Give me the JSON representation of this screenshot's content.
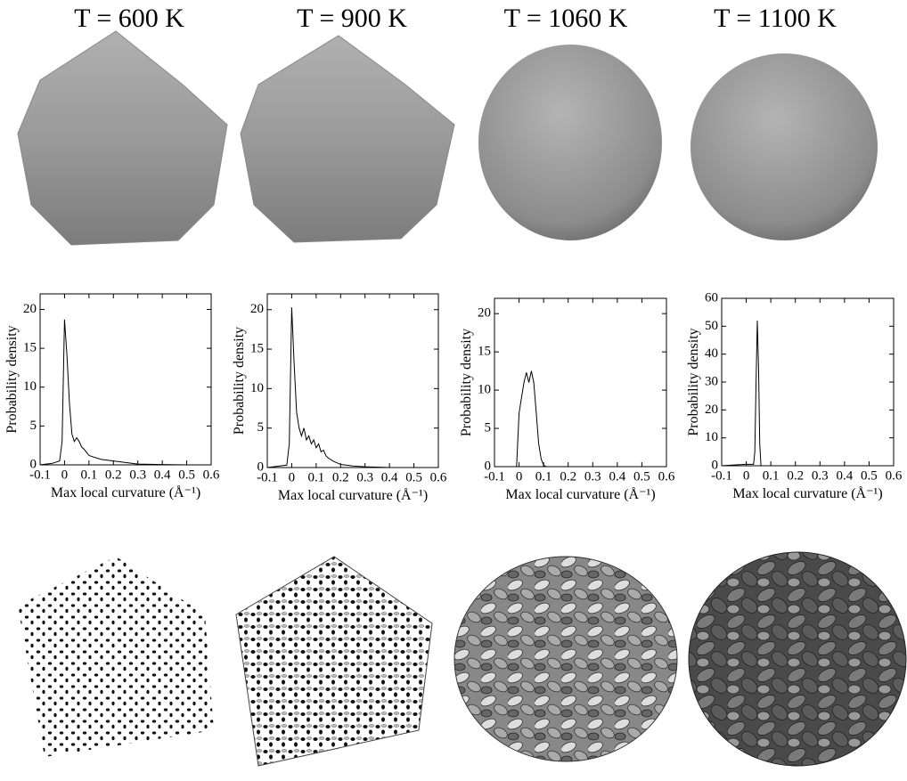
{
  "chart_data": [
    {
      "type": "line",
      "title": "T = 600 K",
      "xlabel": "Max local curvature (Å⁻¹)",
      "ylabel": "Probability density",
      "color": "#000000",
      "x": [
        -0.1,
        -0.05,
        -0.02,
        -0.01,
        0,
        0.01,
        0.02,
        0.03,
        0.04,
        0.05,
        0.06,
        0.07,
        0.08,
        0.1,
        0.12,
        0.15,
        0.2,
        0.25,
        0.3,
        0.4,
        0.5
      ],
      "values": [
        0,
        0.2,
        0.5,
        3,
        18.7,
        14,
        8,
        4,
        3,
        3.5,
        3,
        2.3,
        2,
        1.2,
        1,
        0.7,
        0.5,
        0.3,
        0.1,
        0.05,
        0
      ],
      "xlim": [
        -0.1,
        0.6
      ],
      "xticks": [
        -0.1,
        0,
        0.1,
        0.2,
        0.3,
        0.4,
        0.5,
        0.6
      ],
      "ylim": [
        0,
        22
      ],
      "yticks": [
        0,
        5,
        10,
        15,
        20
      ]
    },
    {
      "type": "line",
      "title": "T = 900 K",
      "xlabel": "Max local curvature (Å⁻¹)",
      "ylabel": "Probability density",
      "color": "#000000",
      "x": [
        -0.1,
        -0.02,
        -0.01,
        0,
        0.01,
        0.02,
        0.03,
        0.04,
        0.05,
        0.06,
        0.07,
        0.08,
        0.09,
        0.1,
        0.11,
        0.12,
        0.13,
        0.14,
        0.15,
        0.17,
        0.2,
        0.25,
        0.3,
        0.4,
        0.6
      ],
      "values": [
        0,
        0.3,
        3,
        20.3,
        13,
        7,
        5,
        4,
        5,
        3.5,
        4,
        3,
        3.5,
        2.5,
        3,
        2,
        2.2,
        1.5,
        1.2,
        0.8,
        0.4,
        0.2,
        0.1,
        0,
        0
      ],
      "xlim": [
        -0.1,
        0.6
      ],
      "xticks": [
        -0.1,
        0,
        0.1,
        0.2,
        0.3,
        0.4,
        0.5,
        0.6
      ],
      "ylim": [
        0,
        22
      ],
      "yticks": [
        0,
        5,
        10,
        15,
        20
      ]
    },
    {
      "type": "line",
      "title": "T = 1060 K",
      "xlabel": "Max local curvature (Å⁻¹)",
      "ylabel": "Probability density",
      "color": "#000000",
      "x": [
        -0.1,
        -0.01,
        0,
        0.01,
        0.02,
        0.03,
        0.04,
        0.05,
        0.06,
        0.07,
        0.08,
        0.09,
        0.1,
        0.11,
        0.6
      ],
      "values": [
        0,
        0,
        7,
        9,
        11,
        12.3,
        11,
        12.5,
        11,
        7,
        3,
        1,
        0.2,
        0,
        0
      ],
      "xlim": [
        -0.1,
        0.6
      ],
      "xticks": [
        -0.1,
        0,
        0.1,
        0.2,
        0.3,
        0.4,
        0.5,
        0.6
      ],
      "ylim": [
        0,
        22
      ],
      "yticks": [
        0,
        5,
        10,
        15,
        20
      ]
    },
    {
      "type": "line",
      "title": "T = 1100 K",
      "xlabel": "Max local curvature (Å⁻¹)",
      "ylabel": "Probability density",
      "color": "#000000",
      "x": [
        -0.1,
        -0.05,
        0,
        0.03,
        0.035,
        0.04,
        0.045,
        0.05,
        0.055,
        0.06,
        0.6
      ],
      "values": [
        0,
        0.3,
        0.5,
        0.5,
        5,
        30,
        52,
        35,
        8,
        0,
        0
      ],
      "xlim": [
        -0.1,
        0.6
      ],
      "xticks": [
        -0.1,
        0,
        0.1,
        0.2,
        0.3,
        0.4,
        0.5,
        0.6
      ],
      "ylim": [
        0,
        60
      ],
      "yticks": [
        0,
        10,
        20,
        30,
        40,
        50,
        60
      ]
    }
  ]
}
